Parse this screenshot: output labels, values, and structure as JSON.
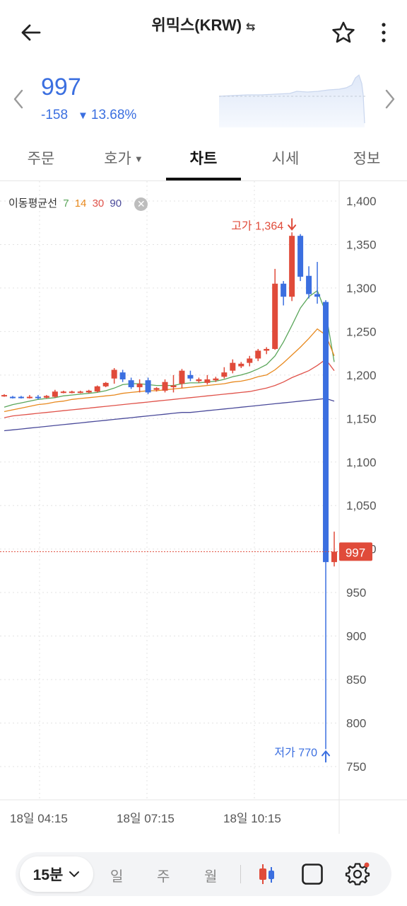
{
  "header": {
    "title": "위믹스(KRW)",
    "swap_icon": "swap-arrows-icon"
  },
  "summary": {
    "price": "997",
    "change_amount": "-158",
    "change_percent": "13.68%",
    "direction_icon": "down-triangle-icon",
    "color_down": "#3b6fe0",
    "color_up": "#e04b3a"
  },
  "tabs": [
    {
      "label": "주문"
    },
    {
      "label": "호가"
    },
    {
      "label": "차트"
    },
    {
      "label": "시세"
    },
    {
      "label": "정보"
    }
  ],
  "active_tab": "차트",
  "ma_legend": {
    "label": "이동평균선",
    "periods": [
      "7",
      "14",
      "30",
      "90"
    ],
    "colors": [
      "#5aa65a",
      "#e8891e",
      "#e0524a",
      "#4a4a9a"
    ]
  },
  "chart_data": {
    "type": "candlestick",
    "y_ticks": [
      "1,400",
      "1,350",
      "1,300",
      "1,250",
      "1,200",
      "1,150",
      "1,100",
      "1,050",
      "1,000",
      "950",
      "900",
      "850",
      "800",
      "750"
    ],
    "x_ticks": [
      "18일 04:15",
      "18일 07:15",
      "18일 10:15"
    ],
    "ylim": [
      738,
      1410
    ],
    "current_price": 997,
    "current_price_label": "997",
    "high_label": "고가 1,364",
    "low_label": "저가 770",
    "high": 1364,
    "low": 770,
    "candles": [
      {
        "o": 1176,
        "h": 1178,
        "c": 1177,
        "l": 1175
      },
      {
        "o": 1175,
        "h": 1176,
        "c": 1174,
        "l": 1173
      },
      {
        "o": 1175,
        "h": 1176,
        "c": 1174,
        "l": 1173
      },
      {
        "o": 1175,
        "h": 1177,
        "c": 1175,
        "l": 1173
      },
      {
        "o": 1175,
        "h": 1177,
        "c": 1174,
        "l": 1172
      },
      {
        "o": 1174,
        "h": 1177,
        "c": 1176,
        "l": 1173
      },
      {
        "o": 1175,
        "h": 1183,
        "c": 1181,
        "l": 1174
      },
      {
        "o": 1180,
        "h": 1182,
        "c": 1181,
        "l": 1179
      },
      {
        "o": 1180,
        "h": 1182,
        "c": 1181,
        "l": 1179
      },
      {
        "o": 1180,
        "h": 1182,
        "c": 1181,
        "l": 1179
      },
      {
        "o": 1180,
        "h": 1183,
        "c": 1182,
        "l": 1179
      },
      {
        "o": 1181,
        "h": 1188,
        "c": 1187,
        "l": 1180
      },
      {
        "o": 1187,
        "h": 1192,
        "c": 1191,
        "l": 1186
      },
      {
        "o": 1196,
        "h": 1208,
        "c": 1206,
        "l": 1190
      },
      {
        "o": 1203,
        "h": 1206,
        "c": 1195,
        "l": 1192
      },
      {
        "o": 1194,
        "h": 1197,
        "c": 1186,
        "l": 1184
      },
      {
        "o": 1186,
        "h": 1195,
        "c": 1190,
        "l": 1180
      },
      {
        "o": 1194,
        "h": 1197,
        "c": 1180,
        "l": 1178
      },
      {
        "o": 1183,
        "h": 1186,
        "c": 1185,
        "l": 1181
      },
      {
        "o": 1182,
        "h": 1195,
        "c": 1192,
        "l": 1180
      },
      {
        "o": 1186,
        "h": 1200,
        "c": 1188,
        "l": 1180
      },
      {
        "o": 1190,
        "h": 1207,
        "c": 1205,
        "l": 1185
      },
      {
        "o": 1200,
        "h": 1205,
        "c": 1196,
        "l": 1193
      },
      {
        "o": 1193,
        "h": 1197,
        "c": 1195,
        "l": 1191
      },
      {
        "o": 1191,
        "h": 1200,
        "c": 1195,
        "l": 1189
      },
      {
        "o": 1194,
        "h": 1198,
        "c": 1196,
        "l": 1192
      },
      {
        "o": 1198,
        "h": 1209,
        "c": 1203,
        "l": 1196
      },
      {
        "o": 1205,
        "h": 1218,
        "c": 1214,
        "l": 1202
      },
      {
        "o": 1210,
        "h": 1215,
        "c": 1213,
        "l": 1208
      },
      {
        "o": 1214,
        "h": 1222,
        "c": 1219,
        "l": 1210
      },
      {
        "o": 1219,
        "h": 1230,
        "c": 1228,
        "l": 1216
      },
      {
        "o": 1228,
        "h": 1232,
        "c": 1230,
        "l": 1224
      },
      {
        "o": 1230,
        "h": 1322,
        "c": 1305,
        "l": 1229
      },
      {
        "o": 1305,
        "h": 1308,
        "c": 1290,
        "l": 1280
      },
      {
        "o": 1290,
        "h": 1364,
        "c": 1360,
        "l": 1285
      },
      {
        "o": 1360,
        "h": 1362,
        "c": 1313,
        "l": 1308
      },
      {
        "o": 1314,
        "h": 1325,
        "c": 1293,
        "l": 1288
      },
      {
        "o": 1293,
        "h": 1330,
        "c": 1290,
        "l": 1282
      },
      {
        "o": 1284,
        "h": 1286,
        "c": 985,
        "l": 770
      },
      {
        "o": 985,
        "h": 1020,
        "c": 997,
        "l": 980
      }
    ],
    "ma": [
      {
        "period": 7,
        "color": "#5aa65a",
        "values": [
          1163,
          1166,
          1168,
          1170,
          1172,
          1173,
          1174,
          1176,
          1177,
          1178,
          1179,
          1180,
          1182,
          1185,
          1189,
          1190,
          1190,
          1189,
          1188,
          1188,
          1188,
          1190,
          1191,
          1191,
          1192,
          1193,
          1195,
          1198,
          1200,
          1203,
          1207,
          1212,
          1222,
          1238,
          1257,
          1277,
          1290,
          1297,
          1272,
          1215
        ]
      },
      {
        "period": 14,
        "color": "#e8891e",
        "values": [
          1158,
          1160,
          1162,
          1164,
          1166,
          1167,
          1169,
          1170,
          1172,
          1173,
          1174,
          1175,
          1176,
          1177,
          1179,
          1180,
          1181,
          1182,
          1182,
          1183,
          1184,
          1185,
          1186,
          1187,
          1188,
          1189,
          1190,
          1192,
          1193,
          1195,
          1198,
          1200,
          1206,
          1214,
          1223,
          1232,
          1242,
          1253,
          1246,
          1222
        ]
      },
      {
        "period": 30,
        "color": "#e0524a",
        "values": [
          1151,
          1153,
          1154,
          1155,
          1156,
          1157,
          1158,
          1159,
          1160,
          1161,
          1162,
          1163,
          1164,
          1165,
          1166,
          1167,
          1168,
          1169,
          1170,
          1171,
          1172,
          1173,
          1174,
          1175,
          1176,
          1177,
          1178,
          1179,
          1180,
          1181,
          1183,
          1185,
          1188,
          1192,
          1197,
          1201,
          1205,
          1211,
          1218,
          1205
        ]
      },
      {
        "period": 90,
        "color": "#4a4a9a",
        "values": [
          1136,
          1137,
          1138,
          1139,
          1140,
          1141,
          1142,
          1143,
          1144,
          1145,
          1146,
          1147,
          1148,
          1149,
          1150,
          1151,
          1152,
          1153,
          1154,
          1155,
          1156,
          1157,
          1157,
          1158,
          1159,
          1160,
          1161,
          1162,
          1163,
          1164,
          1165,
          1166,
          1167,
          1168,
          1169,
          1170,
          1171,
          1172,
          1173,
          1170
        ]
      }
    ]
  },
  "toolbar": {
    "timeframe": "15분",
    "options": [
      "일",
      "주",
      "월"
    ],
    "candle_icon": "candlestick-icon",
    "drawing_icon": "square-icon",
    "settings_icon": "gear-icon"
  }
}
